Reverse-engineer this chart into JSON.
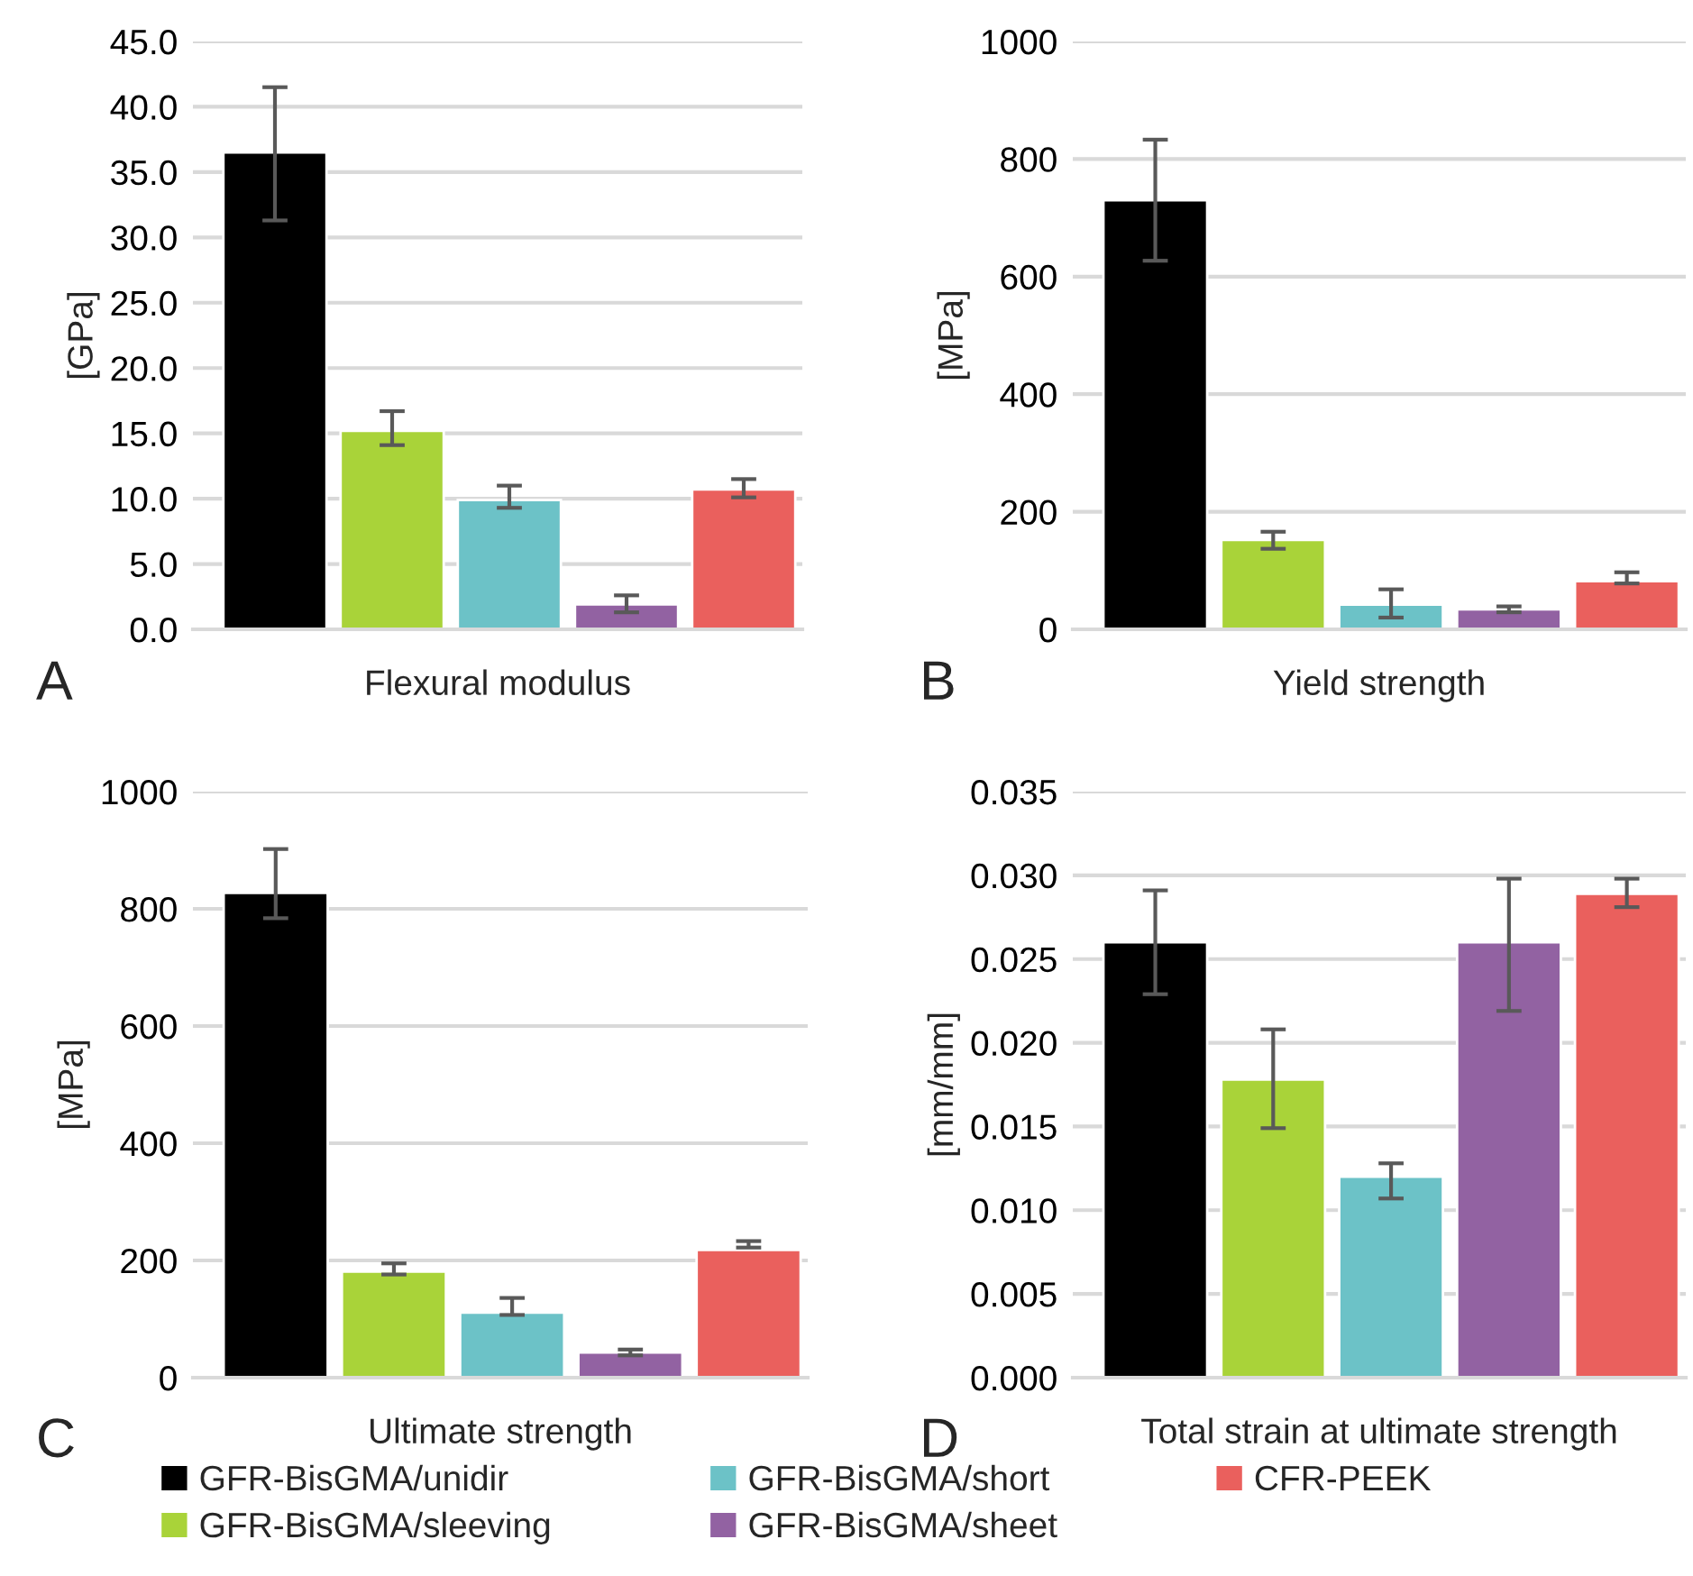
{
  "chart_data": [
    {
      "type": "bar",
      "ylabel": "[GPa]",
      "xlabel": "Flexural modulus",
      "categories": [
        null,
        null,
        null,
        null,
        null
      ],
      "ylim": [
        0,
        45
      ],
      "yticks": [
        {
          "value": 0,
          "label": "0.0"
        },
        {
          "value": 5,
          "label": "5.0"
        },
        {
          "value": 10,
          "label": "10.0"
        },
        {
          "value": 15,
          "label": "15.0"
        },
        {
          "value": 20,
          "label": "20.0"
        },
        {
          "value": 25,
          "label": "25.0"
        },
        {
          "value": 30,
          "label": "30.0"
        },
        {
          "value": 35,
          "label": "35.0"
        },
        {
          "value": 40,
          "label": "40.0"
        },
        {
          "value": 45,
          "label": "45.0"
        }
      ],
      "grid": "y",
      "legend": "bottom",
      "annotations": [
        "A"
      ],
      "series": [
        {
          "name": "GFR-BisGMA/unidir",
          "color": "#000000",
          "values": [
            36.5,
            null,
            null,
            null,
            null
          ],
          "errors": [
            [
              31.3,
              41.5
            ],
            null,
            null,
            null,
            null
          ]
        },
        {
          "name": "GFR-BisGMA/sleeving",
          "color": "#a9d339",
          "values": [
            null,
            15.2,
            null,
            null,
            null
          ],
          "errors": [
            null,
            [
              14.1,
              16.7
            ],
            null,
            null,
            null
          ]
        },
        {
          "name": "GFR-BisGMA/short",
          "color": "#6cc2c7",
          "values": [
            null,
            null,
            9.9,
            null,
            null
          ],
          "errors": [
            null,
            null,
            [
              9.3,
              11.0
            ],
            null,
            null
          ]
        },
        {
          "name": "GFR-BisGMA/sheet",
          "color": "#9262a2",
          "values": [
            null,
            null,
            null,
            1.9,
            null
          ],
          "errors": [
            null,
            null,
            null,
            [
              1.3,
              2.6
            ],
            null
          ]
        },
        {
          "name": "CFR-PEEK",
          "color": "#ea605d",
          "values": [
            null,
            null,
            null,
            null,
            10.7
          ],
          "errors": [
            null,
            null,
            null,
            null,
            [
              10.1,
              11.5
            ]
          ]
        }
      ]
    },
    {
      "type": "bar",
      "ylabel": "[MPa]",
      "xlabel": "Yield strength",
      "categories": [
        null,
        null,
        null,
        null,
        null
      ],
      "ylim": [
        0,
        1000
      ],
      "yticks": [
        0,
        200,
        400,
        600,
        800,
        1000
      ],
      "grid": "y",
      "annotations": [
        "B"
      ],
      "series": [
        {
          "color": "#000000",
          "values": [
            730,
            null,
            null,
            null,
            null
          ],
          "errors": [
            [
              627,
              833
            ],
            null,
            null,
            null,
            null
          ]
        },
        {
          "color": "#a9d339",
          "values": [
            null,
            152,
            null,
            null,
            null
          ],
          "errors": [
            null,
            [
              137,
              166
            ],
            null,
            null,
            null
          ]
        },
        {
          "color": "#6cc2c7",
          "values": [
            null,
            null,
            42,
            null,
            null
          ],
          "errors": [
            null,
            null,
            [
              20,
              68
            ],
            null,
            null
          ]
        },
        {
          "color": "#9262a2",
          "values": [
            null,
            null,
            null,
            34,
            null
          ],
          "errors": [
            null,
            null,
            null,
            [
              29,
              39
            ],
            null
          ]
        },
        {
          "color": "#ea605d",
          "values": [
            null,
            null,
            null,
            null,
            82
          ],
          "errors": [
            null,
            null,
            null,
            null,
            [
              78,
              97
            ]
          ]
        }
      ]
    },
    {
      "type": "bar",
      "ylabel": "[MPa]",
      "xlabel": "Ultimate strength",
      "categories": [
        null,
        null,
        null,
        null,
        null
      ],
      "ylim": [
        0,
        1000
      ],
      "yticks": [
        0,
        200,
        400,
        600,
        800,
        1000
      ],
      "grid": "y",
      "annotations": [
        "C"
      ],
      "series": [
        {
          "color": "#000000",
          "values": [
            827,
            null,
            null,
            null,
            null
          ],
          "errors": [
            [
              784,
              902
            ],
            null,
            null,
            null,
            null
          ]
        },
        {
          "color": "#a9d339",
          "values": [
            null,
            181,
            null,
            null,
            null
          ],
          "errors": [
            null,
            [
              176,
              195
            ],
            null,
            null,
            null
          ]
        },
        {
          "color": "#6cc2c7",
          "values": [
            null,
            null,
            111,
            null,
            null
          ],
          "errors": [
            null,
            null,
            [
              107,
              136
            ],
            null,
            null
          ]
        },
        {
          "color": "#9262a2",
          "values": [
            null,
            null,
            null,
            43,
            null
          ],
          "errors": [
            null,
            null,
            null,
            [
              38,
              48
            ],
            null
          ]
        },
        {
          "color": "#ea605d",
          "values": [
            null,
            null,
            null,
            null,
            218
          ],
          "errors": [
            null,
            null,
            null,
            null,
            [
              222,
              233
            ]
          ]
        }
      ]
    },
    {
      "type": "bar",
      "ylabel": "[mm/mm]",
      "xlabel": "Total strain at ultimate strength",
      "categories": [
        null,
        null,
        null,
        null,
        null
      ],
      "ylim": [
        0,
        0.035
      ],
      "yticks": [
        {
          "value": 0,
          "label": "0.000"
        },
        {
          "value": 0.005,
          "label": "0.005"
        },
        {
          "value": 0.01,
          "label": "0.010"
        },
        {
          "value": 0.015,
          "label": "0.015"
        },
        {
          "value": 0.02,
          "label": "0.020"
        },
        {
          "value": 0.025,
          "label": "0.025"
        },
        {
          "value": 0.03,
          "label": "0.030"
        },
        {
          "value": 0.035,
          "label": "0.035"
        }
      ],
      "grid": "y",
      "annotations": [
        "D"
      ],
      "series": [
        {
          "color": "#000000",
          "values": [
            0.026,
            null,
            null,
            null,
            null
          ],
          "errors": [
            [
              0.0229,
              0.0291
            ],
            null,
            null,
            null,
            null
          ]
        },
        {
          "color": "#a9d339",
          "values": [
            null,
            0.0178,
            null,
            null,
            null
          ],
          "errors": [
            null,
            [
              0.0149,
              0.0208
            ],
            null,
            null,
            null
          ]
        },
        {
          "color": "#6cc2c7",
          "values": [
            null,
            null,
            0.012,
            null,
            null
          ],
          "errors": [
            null,
            null,
            [
              0.0107,
              0.0128
            ],
            null,
            null
          ]
        },
        {
          "color": "#9262a2",
          "values": [
            null,
            null,
            null,
            0.026,
            null
          ],
          "errors": [
            null,
            null,
            null,
            [
              0.0219,
              0.0298
            ],
            null
          ]
        },
        {
          "color": "#ea605d",
          "values": [
            null,
            null,
            null,
            null,
            0.0289
          ],
          "errors": [
            null,
            null,
            null,
            null,
            [
              0.0281,
              0.0298
            ]
          ]
        }
      ]
    }
  ]
}
